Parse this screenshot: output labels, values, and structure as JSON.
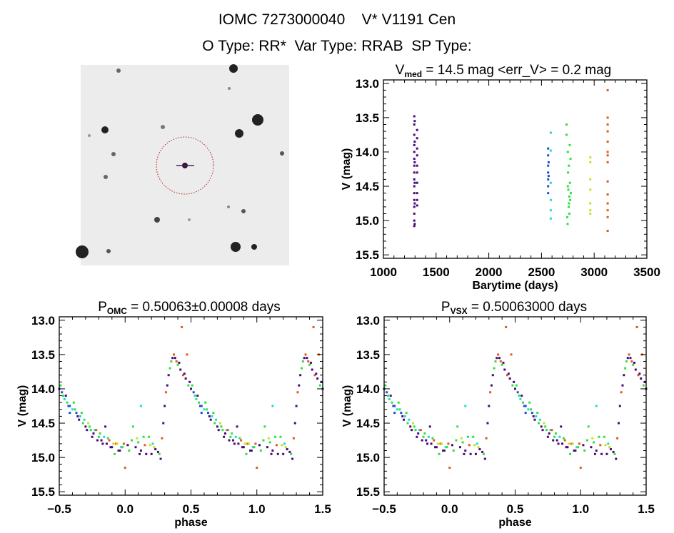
{
  "header": {
    "line1": "IOMC 7273000040    V* V1191 Cen",
    "line2": "O Type: RR*  Var Type: RRAB  SP Type:"
  },
  "seasons": [
    {
      "color": "#4a0a78"
    },
    {
      "color": "#1a4fd6"
    },
    {
      "color": "#20d8d8"
    },
    {
      "color": "#30e040"
    },
    {
      "color": "#c8e020"
    },
    {
      "color": "#e05a18"
    }
  ],
  "chart_data": [
    {
      "id": "timeseries",
      "type": "scatter",
      "title_main": "V",
      "title_sub": "med",
      "title_rest": " = 14.5 mag <err_V> = 0.2 mag",
      "xlabel": "Barytime (days)",
      "ylabel": "V (mag)",
      "xlim": [
        1000,
        3500
      ],
      "ylim": [
        12.95,
        15.55
      ],
      "y_inverted": true,
      "xticks": [
        "1000",
        "1500",
        "2000",
        "2500",
        "3000",
        "3500"
      ],
      "yticks": [
        "13.0",
        "13.5",
        "14.0",
        "14.5",
        "15.0",
        "15.5"
      ],
      "points": [
        [
          1293,
          13.48,
          0
        ],
        [
          1293,
          13.6,
          0
        ],
        [
          1293,
          13.75,
          0
        ],
        [
          1293,
          13.9,
          0
        ],
        [
          1293,
          14.0,
          0
        ],
        [
          1293,
          14.1,
          0
        ],
        [
          1293,
          14.2,
          0
        ],
        [
          1293,
          14.3,
          0
        ],
        [
          1293,
          14.4,
          0
        ],
        [
          1293,
          14.5,
          0
        ],
        [
          1293,
          14.6,
          0
        ],
        [
          1293,
          14.7,
          0
        ],
        [
          1293,
          14.8,
          0
        ],
        [
          1293,
          14.9,
          0
        ],
        [
          1293,
          15.0,
          0
        ],
        [
          1293,
          15.08,
          0
        ],
        [
          1297,
          13.55,
          0
        ],
        [
          1297,
          13.85,
          0
        ],
        [
          1297,
          14.15,
          0
        ],
        [
          1297,
          14.45,
          0
        ],
        [
          1297,
          14.75,
          0
        ],
        [
          1297,
          15.05,
          0
        ],
        [
          1320,
          13.68,
          0
        ],
        [
          1320,
          13.8,
          0
        ],
        [
          1320,
          13.95,
          0
        ],
        [
          1320,
          14.05,
          0
        ],
        [
          1320,
          14.2,
          0
        ],
        [
          1320,
          14.3,
          0
        ],
        [
          1320,
          14.45,
          0
        ],
        [
          1320,
          14.6,
          0
        ],
        [
          1320,
          14.7,
          0
        ],
        [
          1320,
          14.78,
          0
        ],
        [
          2563,
          13.95,
          1
        ],
        [
          2563,
          14.05,
          1
        ],
        [
          2563,
          14.2,
          1
        ],
        [
          2563,
          14.3,
          1
        ],
        [
          2563,
          14.4,
          1
        ],
        [
          2563,
          14.5,
          1
        ],
        [
          2563,
          14.6,
          1
        ],
        [
          2568,
          14.35,
          1
        ],
        [
          2568,
          14.15,
          1
        ],
        [
          2588,
          13.72,
          2
        ],
        [
          2588,
          13.98,
          2
        ],
        [
          2588,
          14.45,
          2
        ],
        [
          2588,
          14.7,
          2
        ],
        [
          2588,
          14.85,
          2
        ],
        [
          2588,
          14.97,
          2
        ],
        [
          2738,
          13.6,
          3
        ],
        [
          2738,
          13.75,
          3
        ],
        [
          2745,
          14.95,
          3
        ],
        [
          2748,
          15.05,
          3
        ],
        [
          2750,
          14.0,
          3
        ],
        [
          2752,
          14.3,
          3
        ],
        [
          2755,
          14.55,
          3
        ],
        [
          2758,
          14.8,
          3
        ],
        [
          2760,
          14.2,
          3
        ],
        [
          2763,
          14.65,
          3
        ],
        [
          2765,
          14.9,
          3
        ],
        [
          2768,
          13.9,
          3
        ],
        [
          2770,
          14.45,
          3
        ],
        [
          2772,
          14.7,
          3
        ],
        [
          2775,
          14.1,
          3
        ],
        [
          2778,
          14.6,
          3
        ],
        [
          2750,
          14.5,
          3
        ],
        [
          2760,
          14.75,
          3
        ],
        [
          2963,
          14.08,
          4
        ],
        [
          2963,
          14.15,
          4
        ],
        [
          2963,
          14.4,
          4
        ],
        [
          2963,
          14.55,
          4
        ],
        [
          2963,
          14.75,
          4
        ],
        [
          2963,
          14.85,
          4
        ],
        [
          2963,
          14.9,
          4
        ],
        [
          3128,
          13.1,
          5
        ],
        [
          3128,
          13.5,
          5
        ],
        [
          3128,
          13.6,
          5
        ],
        [
          3128,
          13.7,
          5
        ],
        [
          3128,
          13.85,
          5
        ],
        [
          3128,
          14.0,
          5
        ],
        [
          3128,
          14.05,
          5
        ],
        [
          3128,
          14.15,
          5
        ],
        [
          3128,
          14.43,
          5
        ],
        [
          3128,
          14.62,
          5
        ],
        [
          3128,
          14.75,
          5
        ],
        [
          3128,
          14.85,
          5
        ],
        [
          3128,
          14.95,
          5
        ],
        [
          3128,
          15.15,
          5
        ]
      ]
    },
    {
      "id": "phase_omc",
      "type": "scatter",
      "title_main": "P",
      "title_sub": "OMC",
      "title_rest": " = 0.50063±0.00008 days",
      "xlabel": "phase",
      "ylabel": "V (mag)",
      "xlim": [
        -0.5,
        1.5
      ],
      "ylim": [
        12.95,
        15.55
      ],
      "y_inverted": true,
      "xticks": [
        "-0.5",
        "0.0",
        "0.5",
        "1.0",
        "1.5"
      ],
      "yticks": [
        "13.0",
        "13.5",
        "14.0",
        "14.5",
        "15.0",
        "15.5"
      ],
      "points": "phase_points"
    },
    {
      "id": "phase_vsx",
      "type": "scatter",
      "title_main": "P",
      "title_sub": "VSX",
      "title_rest": " = 0.50063000 days",
      "xlabel": "phase",
      "ylabel": "V (mag)",
      "xlim": [
        -0.5,
        1.5
      ],
      "ylim": [
        12.95,
        15.55
      ],
      "y_inverted": true,
      "xticks": [
        "-0.5",
        "0.0",
        "0.5",
        "1.0",
        "1.5"
      ],
      "yticks": [
        "13.0",
        "13.5",
        "14.0",
        "14.5",
        "15.0",
        "15.5"
      ],
      "points": "phase_points"
    }
  ],
  "phase_points": [
    [
      0.02,
      14.82,
      0
    ],
    [
      0.03,
      14.9,
      3
    ],
    [
      0.05,
      14.75,
      3
    ],
    [
      0.06,
      14.55,
      3
    ],
    [
      0.08,
      14.85,
      0
    ],
    [
      0.09,
      14.72,
      4
    ],
    [
      0.1,
      14.78,
      3
    ],
    [
      0.11,
      14.95,
      0
    ],
    [
      0.12,
      14.9,
      0
    ],
    [
      0.12,
      14.25,
      2
    ],
    [
      0.14,
      14.7,
      3
    ],
    [
      0.15,
      14.82,
      5
    ],
    [
      0.16,
      14.95,
      0
    ],
    [
      0.18,
      14.7,
      3
    ],
    [
      0.19,
      14.82,
      4
    ],
    [
      0.2,
      14.95,
      0
    ],
    [
      0.21,
      14.8,
      2
    ],
    [
      0.22,
      14.85,
      4
    ],
    [
      0.23,
      14.88,
      0
    ],
    [
      0.25,
      14.92,
      0
    ],
    [
      0.26,
      14.95,
      3
    ],
    [
      0.27,
      15.02,
      0
    ],
    [
      0.28,
      14.72,
      5
    ],
    [
      0.29,
      14.5,
      0
    ],
    [
      0.3,
      14.25,
      0
    ],
    [
      0.31,
      14.05,
      5
    ],
    [
      0.32,
      13.95,
      0
    ],
    [
      0.33,
      13.8,
      0
    ],
    [
      0.34,
      13.7,
      3
    ],
    [
      0.35,
      13.6,
      3
    ],
    [
      0.36,
      13.55,
      0
    ],
    [
      0.37,
      13.5,
      5
    ],
    [
      0.38,
      13.55,
      0
    ],
    [
      0.39,
      13.6,
      5
    ],
    [
      0.4,
      13.65,
      3
    ],
    [
      0.41,
      13.62,
      0
    ],
    [
      0.42,
      13.72,
      0
    ],
    [
      0.43,
      13.1,
      5
    ],
    [
      0.44,
      13.8,
      5
    ],
    [
      0.45,
      13.78,
      0
    ],
    [
      0.46,
      13.85,
      0
    ],
    [
      0.47,
      13.5,
      5
    ],
    [
      0.48,
      13.95,
      3
    ],
    [
      0.49,
      13.9,
      0
    ],
    [
      0.5,
      14.0,
      0
    ],
    [
      0.51,
      13.95,
      3
    ],
    [
      0.52,
      14.05,
      1
    ],
    [
      0.53,
      14.1,
      3
    ],
    [
      0.54,
      14.15,
      2
    ],
    [
      0.55,
      14.1,
      0
    ],
    [
      0.56,
      14.2,
      3
    ],
    [
      0.57,
      14.25,
      1
    ],
    [
      0.58,
      14.25,
      1
    ],
    [
      0.58,
      14.35,
      1
    ],
    [
      0.6,
      14.3,
      2
    ],
    [
      0.61,
      14.2,
      3
    ],
    [
      0.62,
      14.3,
      3
    ],
    [
      0.63,
      14.35,
      1
    ],
    [
      0.64,
      14.4,
      0
    ],
    [
      0.65,
      14.45,
      0
    ],
    [
      0.66,
      14.4,
      2
    ],
    [
      0.67,
      14.35,
      3
    ],
    [
      0.68,
      14.5,
      3
    ],
    [
      0.69,
      14.45,
      2
    ],
    [
      0.7,
      14.55,
      0
    ],
    [
      0.71,
      14.6,
      0
    ],
    [
      0.72,
      14.5,
      4
    ],
    [
      0.73,
      14.55,
      3
    ],
    [
      0.74,
      14.6,
      3
    ],
    [
      0.75,
      14.7,
      0
    ],
    [
      0.76,
      14.65,
      0
    ],
    [
      0.77,
      14.6,
      2
    ],
    [
      0.78,
      14.6,
      5
    ],
    [
      0.79,
      14.75,
      0
    ],
    [
      0.8,
      14.7,
      3
    ],
    [
      0.81,
      14.65,
      3
    ],
    [
      0.82,
      14.75,
      0
    ],
    [
      0.83,
      14.8,
      0
    ],
    [
      0.84,
      14.7,
      2
    ],
    [
      0.85,
      14.55,
      0
    ],
    [
      0.86,
      14.8,
      0
    ],
    [
      0.87,
      14.72,
      3
    ],
    [
      0.88,
      14.75,
      5
    ],
    [
      0.89,
      14.85,
      0
    ],
    [
      0.9,
      14.85,
      0
    ],
    [
      0.91,
      14.8,
      4
    ],
    [
      0.92,
      14.95,
      3
    ],
    [
      0.93,
      14.8,
      5
    ],
    [
      0.94,
      14.8,
      4
    ],
    [
      0.95,
      14.9,
      0
    ],
    [
      0.96,
      14.9,
      0
    ],
    [
      0.97,
      14.85,
      2
    ],
    [
      0.98,
      14.85,
      3
    ],
    [
      0.99,
      14.8,
      5
    ],
    [
      0.0,
      15.15,
      5
    ]
  ]
}
